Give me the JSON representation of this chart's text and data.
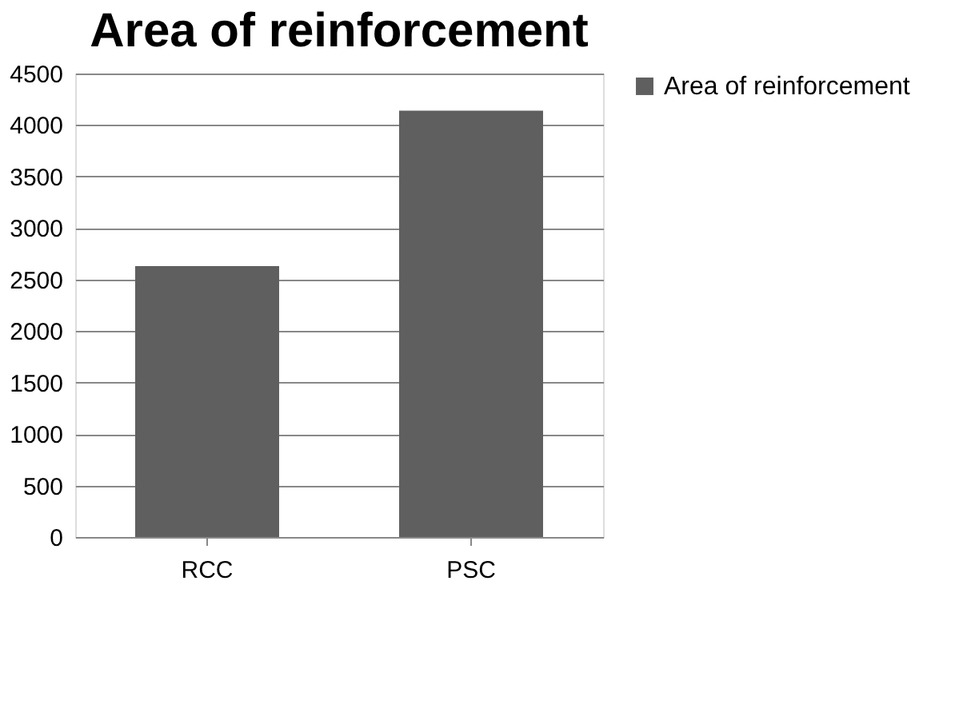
{
  "chart_data": {
    "type": "bar",
    "title": "Area of reinforcement",
    "categories": [
      "RCC",
      "PSC"
    ],
    "series": [
      {
        "name": "Area of reinforcement",
        "color": "#5f5f5f",
        "values": [
          2630,
          4140
        ]
      }
    ],
    "ylim": [
      0,
      4500
    ],
    "yticks": [
      0,
      500,
      1000,
      1500,
      2000,
      2500,
      3000,
      3500,
      4000,
      4500
    ],
    "grid": "y",
    "legend": "right"
  }
}
